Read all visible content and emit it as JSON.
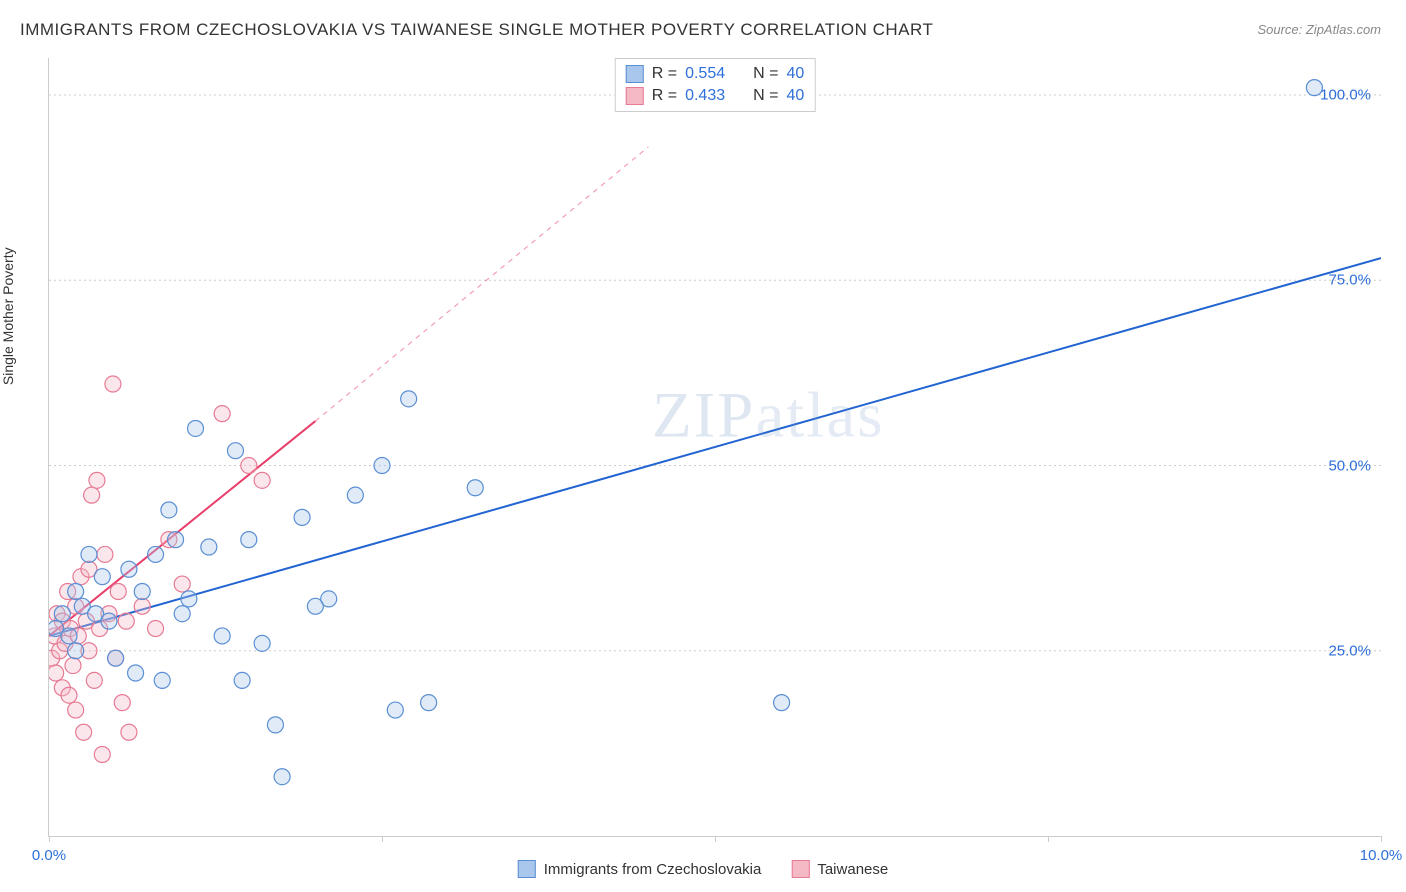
{
  "title": "IMMIGRANTS FROM CZECHOSLOVAKIA VS TAIWANESE SINGLE MOTHER POVERTY CORRELATION CHART",
  "source": "Source: ZipAtlas.com",
  "y_axis_label": "Single Mother Poverty",
  "watermark": "ZIPatlas",
  "chart": {
    "type": "scatter",
    "background_color": "#ffffff",
    "grid_color": "#cccccc",
    "axis_color": "#cccccc",
    "xlim": [
      0,
      10
    ],
    "ylim": [
      0,
      105
    ],
    "x_ticks": [
      0,
      2.5,
      5,
      7.5,
      10
    ],
    "x_tick_labels": [
      "0.0%",
      "",
      "",
      "",
      "10.0%"
    ],
    "y_ticks": [
      25,
      50,
      75,
      100
    ],
    "y_tick_labels": [
      "25.0%",
      "50.0%",
      "75.0%",
      "100.0%"
    ],
    "marker_radius": 8,
    "marker_fill_opacity": 0.35,
    "marker_stroke_width": 1.2,
    "trend_line_width": 2,
    "trend_dash_width": 1.2
  },
  "series": [
    {
      "id": "czechoslovakia",
      "label": "Immigrants from Czechoslovakia",
      "color_fill": "#a9c7ec",
      "color_stroke": "#5a8fd4",
      "trendline_color": "#2264d1",
      "R": "0.554",
      "N": "40",
      "trend": {
        "x1": 0,
        "y1": 27,
        "x2": 10,
        "y2": 78
      },
      "points": [
        [
          0.05,
          28
        ],
        [
          0.1,
          30
        ],
        [
          0.15,
          27
        ],
        [
          0.2,
          25
        ],
        [
          0.2,
          33
        ],
        [
          0.25,
          31
        ],
        [
          0.3,
          38
        ],
        [
          0.35,
          30
        ],
        [
          0.4,
          35
        ],
        [
          0.45,
          29
        ],
        [
          0.5,
          24
        ],
        [
          0.6,
          36
        ],
        [
          0.65,
          22
        ],
        [
          0.7,
          33
        ],
        [
          0.8,
          38
        ],
        [
          0.85,
          21
        ],
        [
          0.9,
          44
        ],
        [
          0.95,
          40
        ],
        [
          1.0,
          30
        ],
        [
          1.05,
          32
        ],
        [
          1.1,
          55
        ],
        [
          1.2,
          39
        ],
        [
          1.3,
          27
        ],
        [
          1.4,
          52
        ],
        [
          1.45,
          21
        ],
        [
          1.5,
          40
        ],
        [
          1.6,
          26
        ],
        [
          1.7,
          15
        ],
        [
          1.75,
          8
        ],
        [
          1.9,
          43
        ],
        [
          2.0,
          31
        ],
        [
          2.1,
          32
        ],
        [
          2.3,
          46
        ],
        [
          2.5,
          50
        ],
        [
          2.6,
          17
        ],
        [
          2.7,
          59
        ],
        [
          2.85,
          18
        ],
        [
          3.2,
          47
        ],
        [
          5.5,
          18
        ],
        [
          9.5,
          101
        ]
      ]
    },
    {
      "id": "taiwanese",
      "label": "Taiwanese",
      "color_fill": "#f4b9c5",
      "color_stroke": "#e77a94",
      "trendline_color": "#e83e6b",
      "R": "0.433",
      "N": "40",
      "trend_solid": {
        "x1": 0,
        "y1": 27,
        "x2": 2.0,
        "y2": 56
      },
      "trend_dashed": {
        "x1": 2.0,
        "y1": 56,
        "x2": 4.5,
        "y2": 93
      },
      "points": [
        [
          0.02,
          24
        ],
        [
          0.04,
          27
        ],
        [
          0.05,
          22
        ],
        [
          0.06,
          30
        ],
        [
          0.08,
          25
        ],
        [
          0.1,
          20
        ],
        [
          0.1,
          29
        ],
        [
          0.12,
          26
        ],
        [
          0.14,
          33
        ],
        [
          0.15,
          19
        ],
        [
          0.16,
          28
        ],
        [
          0.18,
          23
        ],
        [
          0.2,
          31
        ],
        [
          0.2,
          17
        ],
        [
          0.22,
          27
        ],
        [
          0.24,
          35
        ],
        [
          0.26,
          14
        ],
        [
          0.28,
          29
        ],
        [
          0.3,
          25
        ],
        [
          0.3,
          36
        ],
        [
          0.32,
          46
        ],
        [
          0.34,
          21
        ],
        [
          0.36,
          48
        ],
        [
          0.38,
          28
        ],
        [
          0.4,
          11
        ],
        [
          0.42,
          38
        ],
        [
          0.45,
          30
        ],
        [
          0.48,
          61
        ],
        [
          0.5,
          24
        ],
        [
          0.52,
          33
        ],
        [
          0.55,
          18
        ],
        [
          0.58,
          29
        ],
        [
          0.6,
          14
        ],
        [
          0.7,
          31
        ],
        [
          0.8,
          28
        ],
        [
          0.9,
          40
        ],
        [
          1.0,
          34
        ],
        [
          1.3,
          57
        ],
        [
          1.5,
          50
        ],
        [
          1.6,
          48
        ]
      ]
    }
  ],
  "legend_top_labels": {
    "R": "R =",
    "N": "N ="
  },
  "bottom_legend": [
    {
      "series": "czechoslovakia"
    },
    {
      "series": "taiwanese"
    }
  ]
}
